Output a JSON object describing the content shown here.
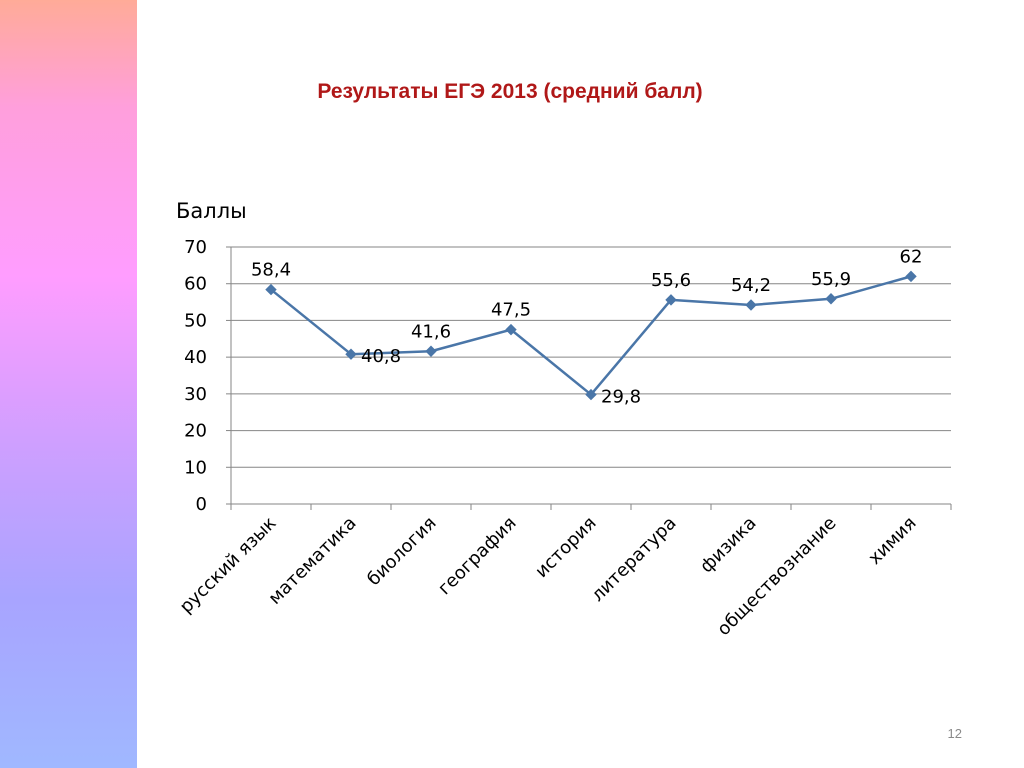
{
  "slide": {
    "title": "Результаты ЕГЭ 2013 (средний балл)",
    "page_number": "12"
  },
  "colors": {
    "title": "#b01818",
    "series_line": "#4a76a8",
    "series_marker": "#4a76a8",
    "gridline": "#868686"
  },
  "chart_data": {
    "type": "line",
    "title": "Результаты ЕГЭ 2013 (средний балл)",
    "ylabel": "Баллы",
    "xlabel": "",
    "categories": [
      "русский язык",
      "математика",
      "биология",
      "география",
      "история",
      "литература",
      "физика",
      "обществознание",
      "химия"
    ],
    "series": [
      {
        "values": [
          58.4,
          40.8,
          41.6,
          47.5,
          29.8,
          55.6,
          54.2,
          55.9,
          62
        ]
      }
    ],
    "data_labels": [
      "58,4",
      "40,8",
      "41,6",
      "47,5",
      "29,8",
      "55,6",
      "54,2",
      "55,9",
      "62"
    ],
    "ylim": [
      0,
      70
    ],
    "yticks": [
      0,
      10,
      20,
      30,
      40,
      50,
      60,
      70
    ],
    "ytick_labels": [
      "0",
      "10",
      "20",
      "30",
      "40",
      "50",
      "60",
      "70"
    ],
    "grid": true,
    "legend": "none",
    "marker": "diamond"
  }
}
